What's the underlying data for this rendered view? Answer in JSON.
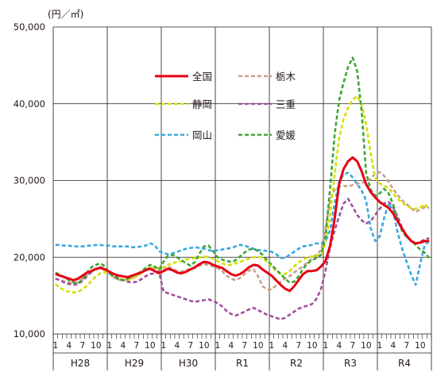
{
  "chart_data": {
    "type": "line",
    "unit_label": "(円／㎡)",
    "ylim": [
      10000,
      50000
    ],
    "y_ticks": [
      10000,
      20000,
      30000,
      40000,
      50000
    ],
    "y_tick_labels": [
      "10,000",
      "20,000",
      "30,000",
      "40,000",
      "50,000"
    ],
    "grid": true,
    "legend_position": "top-center",
    "years": [
      "H28",
      "H29",
      "H30",
      "R1",
      "R2",
      "R3",
      "R4"
    ],
    "month_ticks": [
      "1",
      "4",
      "7",
      "10"
    ],
    "x_points": 84,
    "series": [
      {
        "name": "全国",
        "color": "#e60012",
        "dash": "solid",
        "values": [
          17800,
          17600,
          17400,
          17200,
          17000,
          17200,
          17600,
          18000,
          18200,
          18500,
          18600,
          18400,
          18100,
          17800,
          17600,
          17500,
          17400,
          17600,
          17800,
          18000,
          18300,
          18500,
          18200,
          17900,
          18200,
          18500,
          18300,
          18000,
          17900,
          18100,
          18400,
          18700,
          19100,
          19400,
          19300,
          19000,
          18800,
          18600,
          18200,
          17800,
          17600,
          17800,
          18200,
          18700,
          19000,
          18900,
          18400,
          18000,
          17600,
          17000,
          16400,
          15900,
          15600,
          16200,
          17000,
          17800,
          18200,
          18200,
          18300,
          18800,
          19500,
          21500,
          25000,
          29500,
          31500,
          32500,
          33000,
          32500,
          31200,
          29500,
          28500,
          27800,
          27200,
          26800,
          26400,
          25700,
          24700,
          23700,
          22800,
          22100,
          21800,
          21900,
          22100,
          22100
        ]
      },
      {
        "name": "栃木",
        "color": "#c8a08c",
        "dash": "dashed",
        "values": [
          17200,
          17000,
          16800,
          16700,
          16600,
          16800,
          17200,
          17700,
          18100,
          18400,
          18600,
          18300,
          17800,
          17400,
          17100,
          17000,
          17100,
          17300,
          17600,
          17900,
          18300,
          18700,
          18500,
          18200,
          18600,
          18800,
          18500,
          18200,
          18100,
          18300,
          18500,
          18600,
          18900,
          19100,
          19000,
          18800,
          18600,
          18200,
          17600,
          17200,
          17000,
          17300,
          17800,
          18300,
          18400,
          17500,
          16200,
          15800,
          15800,
          16300,
          16800,
          17200,
          17500,
          18000,
          18400,
          18800,
          19400,
          19800,
          20400,
          20900,
          23800,
          27500,
          28800,
          29200,
          29300,
          29200,
          29400,
          29600,
          29700,
          29800,
          30200,
          30900,
          31100,
          30600,
          29800,
          28900,
          28100,
          27400,
          26900,
          26400,
          25900,
          26200,
          26500,
          26400
        ]
      },
      {
        "name": "静岡",
        "color": "#d2e000",
        "dash": "dashed",
        "values": [
          16500,
          16000,
          15700,
          15500,
          15400,
          15500,
          15800,
          16300,
          16900,
          17500,
          17900,
          18100,
          17900,
          17600,
          17300,
          17100,
          17000,
          17200,
          17500,
          17900,
          18300,
          18600,
          18700,
          18500,
          18700,
          19000,
          19200,
          19400,
          19500,
          19700,
          19800,
          19900,
          20000,
          20100,
          20000,
          19800,
          19500,
          19200,
          19000,
          19000,
          19200,
          19400,
          19600,
          19800,
          20000,
          20100,
          19900,
          19400,
          18800,
          18200,
          17800,
          17800,
          18200,
          18800,
          19300,
          19700,
          20000,
          20100,
          20200,
          20400,
          21800,
          25500,
          30800,
          35500,
          38000,
          39500,
          40500,
          41000,
          39800,
          37400,
          33500,
          30400,
          29600,
          29300,
          29000,
          28300,
          27600,
          27100,
          26700,
          26400,
          26300,
          26500,
          26900,
          26300
        ]
      },
      {
        "name": "三重",
        "color": "#a0509a",
        "dash": "dashed",
        "values": [
          17200,
          17000,
          16700,
          16500,
          16400,
          16500,
          16900,
          17500,
          18100,
          18500,
          18700,
          18500,
          18100,
          17600,
          17200,
          17000,
          16800,
          16700,
          16800,
          17100,
          17500,
          17800,
          17900,
          18100,
          15500,
          15300,
          15100,
          14900,
          14700,
          14500,
          14300,
          14200,
          14300,
          14400,
          14500,
          14300,
          14000,
          13600,
          13000,
          12600,
          12400,
          12600,
          12900,
          13200,
          13400,
          13100,
          12800,
          12500,
          12300,
          12100,
          11900,
          12100,
          12500,
          12900,
          13300,
          13500,
          13700,
          13900,
          14600,
          15900,
          18300,
          21300,
          23500,
          25300,
          27000,
          27600,
          26600,
          25500,
          24800,
          24400,
          24700,
          25500,
          26300,
          27000,
          27200,
          26500,
          25300,
          23800,
          22700,
          22100,
          21700,
          22000,
          22300,
          22500
        ]
      },
      {
        "name": "岡山",
        "color": "#3aa9e0",
        "dash": "dashed",
        "values": [
          21600,
          21600,
          21500,
          21500,
          21400,
          21400,
          21400,
          21500,
          21500,
          21600,
          21600,
          21500,
          21500,
          21400,
          21400,
          21400,
          21400,
          21300,
          21300,
          21400,
          21500,
          21800,
          21600,
          20800,
          20500,
          20400,
          20500,
          20700,
          20900,
          21100,
          21200,
          21300,
          21200,
          21100,
          20900,
          20800,
          20900,
          21000,
          21100,
          21200,
          21400,
          21600,
          21500,
          21300,
          21100,
          20900,
          20900,
          20800,
          20700,
          20400,
          19900,
          19900,
          20300,
          20700,
          21100,
          21400,
          21500,
          21600,
          21800,
          21800,
          22100,
          23500,
          27000,
          29800,
          30800,
          31000,
          30400,
          29500,
          28700,
          27400,
          23800,
          22100,
          22700,
          25100,
          27000,
          26000,
          23200,
          21100,
          19400,
          17700,
          16400,
          19100,
          21600,
          22100
        ]
      },
      {
        "name": "愛媛",
        "color": "#3fa535",
        "dash": "dashed",
        "values": [
          18000,
          17700,
          17400,
          17000,
          16700,
          16600,
          17100,
          18000,
          18700,
          19000,
          19200,
          18800,
          17900,
          17400,
          17100,
          17000,
          17200,
          17500,
          17800,
          18100,
          18600,
          19000,
          18800,
          18400,
          19400,
          20200,
          20300,
          20000,
          19600,
          19200,
          18900,
          19400,
          20500,
          21400,
          21500,
          20800,
          20000,
          19700,
          19500,
          19400,
          19600,
          20100,
          20600,
          21000,
          21100,
          20800,
          20300,
          19600,
          19000,
          18400,
          17800,
          17200,
          16700,
          16800,
          17500,
          18500,
          19200,
          19600,
          19900,
          20300,
          22800,
          29000,
          36000,
          40400,
          42800,
          44800,
          46000,
          44300,
          39000,
          31000,
          28800,
          28000,
          28300,
          28900,
          28300,
          26900,
          24800,
          23400,
          22600,
          22200,
          21600,
          21000,
          20600,
          19900
        ]
      }
    ]
  }
}
